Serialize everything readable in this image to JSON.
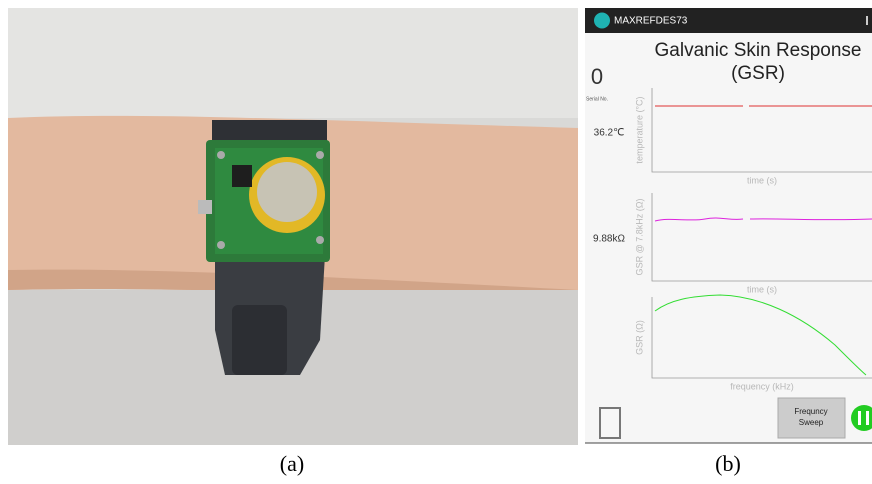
{
  "panels": {
    "a": {
      "label": "(a)"
    },
    "b": {
      "label": "(b)"
    }
  },
  "app": {
    "name": "MAXREFDES73",
    "title_lines": [
      "Galvanic Skin Response",
      "(GSR)"
    ],
    "serial": {
      "value": "0",
      "label": "Serial No."
    },
    "temperature": "36.2℃",
    "gsr": "9.88kΩ",
    "charts": [
      {
        "ylabel": "temperature (°C)",
        "xlabel": "time (s)"
      },
      {
        "ylabel": "GSR @ 7.8kHz (Ω)",
        "xlabel": "time (s)"
      },
      {
        "ylabel": "GSR (Ω)",
        "xlabel": "frequency (kHz)"
      }
    ],
    "button_lines": [
      "Frequncy",
      "Sweep"
    ]
  }
}
